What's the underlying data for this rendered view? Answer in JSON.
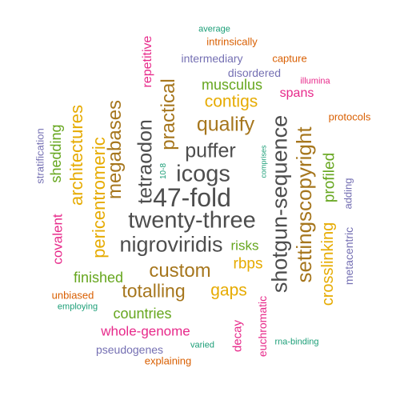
{
  "word_cloud": {
    "colors": {
      "dark_gray": "#4d4d4d",
      "brown": "#a6761d",
      "gold": "#e6ab02",
      "green": "#66a61e",
      "magenta": "#e7298a",
      "purple": "#7570b3",
      "orange": "#d95f02",
      "teal": "#1b9e77"
    },
    "words": [
      {
        "text": "47-fold",
        "color": "dark_gray"
      },
      {
        "text": "twenty-three",
        "color": "dark_gray"
      },
      {
        "text": "nigroviridis",
        "color": "dark_gray"
      },
      {
        "text": "icogs",
        "color": "dark_gray"
      },
      {
        "text": "puffer",
        "color": "dark_gray"
      },
      {
        "text": "shotgun-sequence",
        "color": "dark_gray"
      },
      {
        "text": "settingscopyright",
        "color": "brown"
      },
      {
        "text": "tetraodon",
        "color": "dark_gray"
      },
      {
        "text": "megabases",
        "color": "brown"
      },
      {
        "text": "practical",
        "color": "brown"
      },
      {
        "text": "qualify",
        "color": "brown"
      },
      {
        "text": "custom",
        "color": "brown"
      },
      {
        "text": "totalling",
        "color": "brown"
      },
      {
        "text": "pericentromeric",
        "color": "gold"
      },
      {
        "text": "architectures",
        "color": "gold"
      },
      {
        "text": "contigs",
        "color": "gold"
      },
      {
        "text": "gaps",
        "color": "gold"
      },
      {
        "text": "crosslinking",
        "color": "gold"
      },
      {
        "text": "rbps",
        "color": "gold"
      },
      {
        "text": "profiled",
        "color": "green"
      },
      {
        "text": "shedding",
        "color": "green"
      },
      {
        "text": "musculus",
        "color": "green"
      },
      {
        "text": "risks",
        "color": "green"
      },
      {
        "text": "finished",
        "color": "green"
      },
      {
        "text": "countries",
        "color": "green"
      },
      {
        "text": "covalent",
        "color": "magenta"
      },
      {
        "text": "whole-genome",
        "color": "magenta"
      },
      {
        "text": "repetitive",
        "color": "magenta"
      },
      {
        "text": "spans",
        "color": "magenta"
      },
      {
        "text": "decay",
        "color": "magenta"
      },
      {
        "text": "euchromatic",
        "color": "magenta"
      },
      {
        "text": "illumina",
        "color": "magenta"
      },
      {
        "text": "metacentric",
        "color": "purple"
      },
      {
        "text": "intermediary",
        "color": "purple"
      },
      {
        "text": "disordered",
        "color": "purple"
      },
      {
        "text": "stratification",
        "color": "purple"
      },
      {
        "text": "adding",
        "color": "purple"
      },
      {
        "text": "pseudogenes",
        "color": "purple"
      },
      {
        "text": "capture",
        "color": "orange"
      },
      {
        "text": "intrinsically",
        "color": "orange"
      },
      {
        "text": "protocols",
        "color": "orange"
      },
      {
        "text": "unbiased",
        "color": "orange"
      },
      {
        "text": "explaining",
        "color": "orange"
      },
      {
        "text": "average",
        "color": "teal"
      },
      {
        "text": "comprises",
        "color": "teal"
      },
      {
        "text": "10-8",
        "color": "teal"
      },
      {
        "text": "employing",
        "color": "teal"
      },
      {
        "text": "varied",
        "color": "teal"
      },
      {
        "text": "rna-binding",
        "color": "teal"
      }
    ]
  }
}
